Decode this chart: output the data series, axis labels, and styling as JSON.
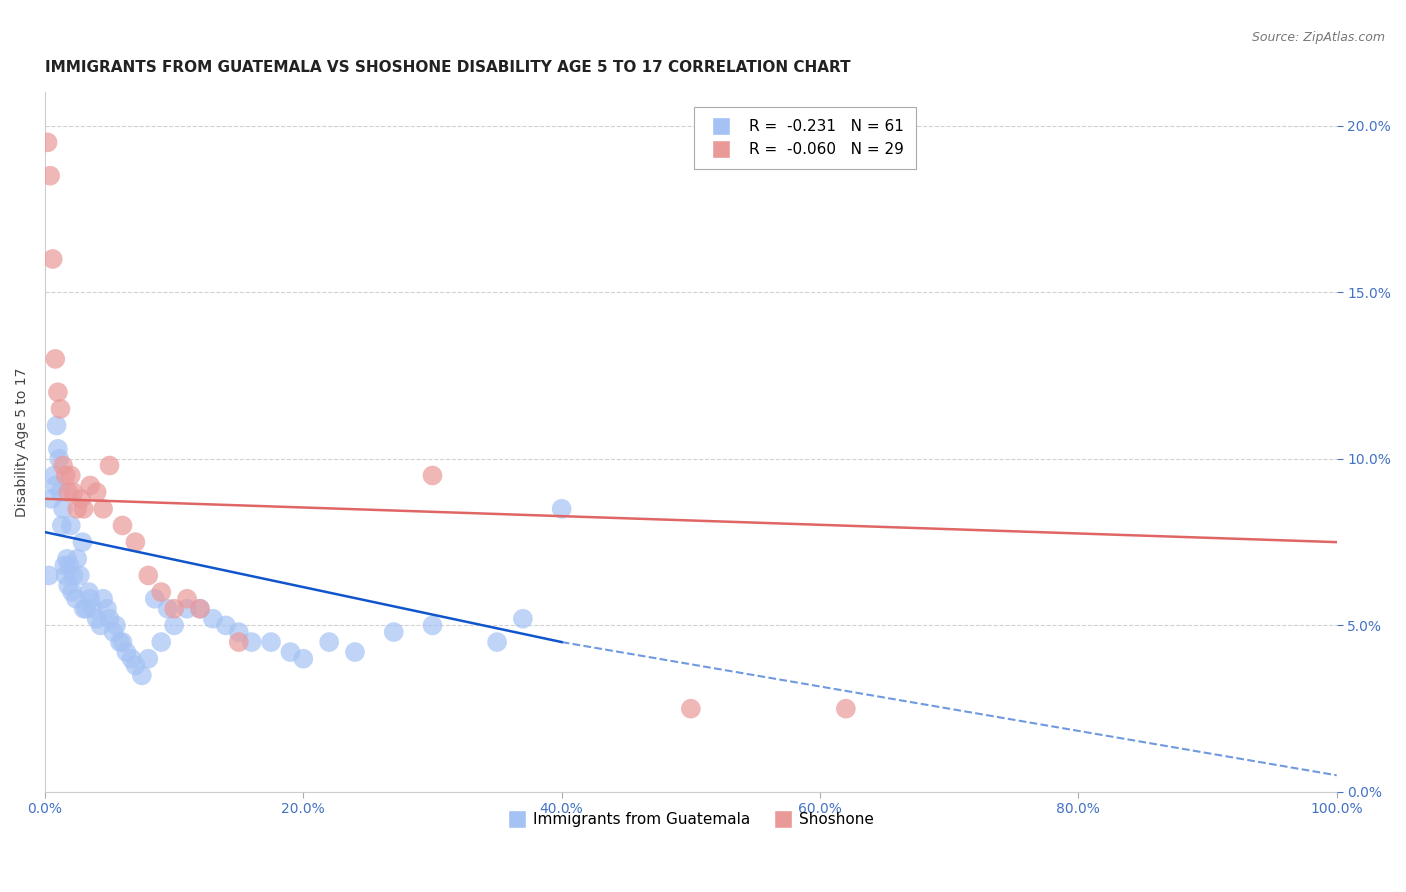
{
  "title": "IMMIGRANTS FROM GUATEMALA VS SHOSHONE DISABILITY AGE 5 TO 17 CORRELATION CHART",
  "source": "Source: ZipAtlas.com",
  "ylabel": "Disability Age 5 to 17",
  "legend_labels": [
    "Immigrants from Guatemala",
    "Shoshone"
  ],
  "blue_R": -0.231,
  "blue_N": 61,
  "pink_R": -0.06,
  "pink_N": 29,
  "blue_color": "#a4c2f4",
  "pink_color": "#ea9999",
  "blue_trend_color": "#1155cc",
  "pink_trend_color": "#e06666",
  "xlim": [
    0,
    100
  ],
  "ylim": [
    0,
    21
  ],
  "blue_points": [
    [
      0.3,
      6.5
    ],
    [
      0.5,
      8.8
    ],
    [
      0.7,
      9.5
    ],
    [
      0.8,
      9.2
    ],
    [
      0.9,
      11.0
    ],
    [
      1.0,
      10.3
    ],
    [
      1.1,
      10.0
    ],
    [
      1.2,
      9.0
    ],
    [
      1.3,
      8.0
    ],
    [
      1.4,
      8.5
    ],
    [
      1.5,
      6.8
    ],
    [
      1.6,
      6.5
    ],
    [
      1.7,
      7.0
    ],
    [
      1.8,
      6.2
    ],
    [
      1.9,
      6.8
    ],
    [
      2.0,
      8.0
    ],
    [
      2.1,
      6.0
    ],
    [
      2.2,
      6.5
    ],
    [
      2.4,
      5.8
    ],
    [
      2.5,
      7.0
    ],
    [
      2.7,
      6.5
    ],
    [
      2.9,
      7.5
    ],
    [
      3.0,
      5.5
    ],
    [
      3.2,
      5.5
    ],
    [
      3.4,
      6.0
    ],
    [
      3.5,
      5.8
    ],
    [
      3.7,
      5.5
    ],
    [
      4.0,
      5.2
    ],
    [
      4.3,
      5.0
    ],
    [
      4.5,
      5.8
    ],
    [
      4.8,
      5.5
    ],
    [
      5.0,
      5.2
    ],
    [
      5.3,
      4.8
    ],
    [
      5.5,
      5.0
    ],
    [
      5.8,
      4.5
    ],
    [
      6.0,
      4.5
    ],
    [
      6.3,
      4.2
    ],
    [
      6.7,
      4.0
    ],
    [
      7.0,
      3.8
    ],
    [
      7.5,
      3.5
    ],
    [
      8.0,
      4.0
    ],
    [
      8.5,
      5.8
    ],
    [
      9.0,
      4.5
    ],
    [
      9.5,
      5.5
    ],
    [
      10.0,
      5.0
    ],
    [
      11.0,
      5.5
    ],
    [
      12.0,
      5.5
    ],
    [
      13.0,
      5.2
    ],
    [
      14.0,
      5.0
    ],
    [
      15.0,
      4.8
    ],
    [
      16.0,
      4.5
    ],
    [
      17.5,
      4.5
    ],
    [
      19.0,
      4.2
    ],
    [
      20.0,
      4.0
    ],
    [
      22.0,
      4.5
    ],
    [
      24.0,
      4.2
    ],
    [
      27.0,
      4.8
    ],
    [
      30.0,
      5.0
    ],
    [
      35.0,
      4.5
    ],
    [
      37.0,
      5.2
    ],
    [
      40.0,
      8.5
    ]
  ],
  "pink_points": [
    [
      0.2,
      19.5
    ],
    [
      0.4,
      18.5
    ],
    [
      0.6,
      16.0
    ],
    [
      0.8,
      13.0
    ],
    [
      1.0,
      12.0
    ],
    [
      1.2,
      11.5
    ],
    [
      1.4,
      9.8
    ],
    [
      1.6,
      9.5
    ],
    [
      1.8,
      9.0
    ],
    [
      2.0,
      9.5
    ],
    [
      2.2,
      9.0
    ],
    [
      2.5,
      8.5
    ],
    [
      2.8,
      8.8
    ],
    [
      3.0,
      8.5
    ],
    [
      3.5,
      9.2
    ],
    [
      4.0,
      9.0
    ],
    [
      4.5,
      8.5
    ],
    [
      5.0,
      9.8
    ],
    [
      6.0,
      8.0
    ],
    [
      7.0,
      7.5
    ],
    [
      8.0,
      6.5
    ],
    [
      9.0,
      6.0
    ],
    [
      10.0,
      5.5
    ],
    [
      11.0,
      5.8
    ],
    [
      12.0,
      5.5
    ],
    [
      15.0,
      4.5
    ],
    [
      30.0,
      9.5
    ],
    [
      50.0,
      2.5
    ],
    [
      62.0,
      2.5
    ]
  ],
  "blue_trend_x0": 0,
  "blue_trend_x1": 40,
  "blue_trend_y0": 7.8,
  "blue_trend_y1": 4.5,
  "blue_dash_x0": 40,
  "blue_dash_x1": 100,
  "blue_dash_y0": 4.5,
  "blue_dash_y1": 0.5,
  "pink_trend_x0": 0,
  "pink_trend_x1": 100,
  "pink_trend_y0": 8.8,
  "pink_trend_y1": 7.5,
  "yticks": [
    0,
    5,
    10,
    15,
    20
  ],
  "ytick_labels_right": [
    "0.0%",
    "5.0%",
    "10.0%",
    "15.0%",
    "20.0%"
  ],
  "xticks": [
    0,
    20,
    40,
    60,
    80,
    100
  ],
  "xtick_labels": [
    "0.0%",
    "20.0%",
    "40.0%",
    "60.0%",
    "80.0%",
    "100.0%"
  ],
  "grid_color": "#cccccc",
  "background_color": "#ffffff",
  "title_fontsize": 11,
  "axis_label_color": "#4472c4",
  "right_tick_color": "#4472c4"
}
